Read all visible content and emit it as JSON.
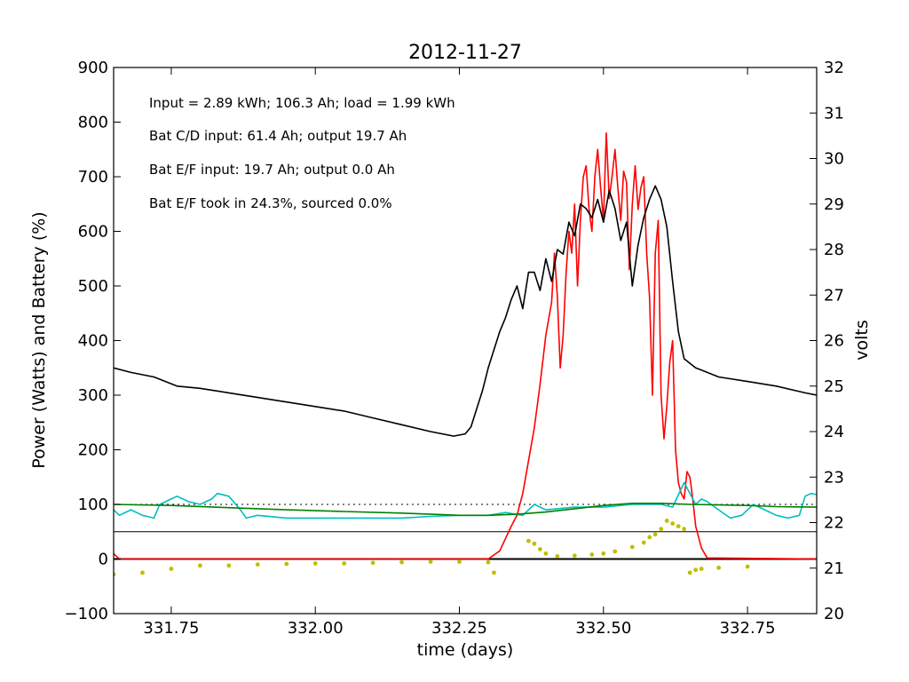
{
  "chart_data": {
    "type": "line",
    "title": "2012-11-27",
    "xlabel": "time (days)",
    "ylabel": "Power (Watts) and Battery (%)",
    "y2label": "volts",
    "xlim": [
      331.65,
      332.87
    ],
    "ylim": [
      -100,
      900
    ],
    "y2lim": [
      20,
      32
    ],
    "xticks": [
      "331.75",
      "332.00",
      "332.25",
      "332.50",
      "332.75"
    ],
    "xtick_values": [
      331.75,
      332.0,
      332.25,
      332.5,
      332.75
    ],
    "yticks": [
      "−100",
      "0",
      "100",
      "200",
      "300",
      "400",
      "500",
      "600",
      "700",
      "800",
      "900"
    ],
    "ytick_values": [
      -100,
      0,
      100,
      200,
      300,
      400,
      500,
      600,
      700,
      800,
      900
    ],
    "y2ticks": [
      "20",
      "21",
      "22",
      "23",
      "24",
      "25",
      "26",
      "27",
      "28",
      "29",
      "30",
      "31",
      "32"
    ],
    "y2tick_values": [
      20,
      21,
      22,
      23,
      24,
      25,
      26,
      27,
      28,
      29,
      30,
      31,
      32
    ],
    "grid": false,
    "annotations": [
      "Input = 2.89 kWh; 106.3 Ah; load = 1.99 kWh",
      "Bat C/D input: 61.4 Ah; output 19.7 Ah",
      "Bat E/F input: 19.7 Ah; output 0.0 Ah",
      "Bat E/F took in 24.3%, sourced 0.0%"
    ],
    "hlines": [
      {
        "y": 100,
        "style": "dotted",
        "color": "#000000"
      },
      {
        "y": 50,
        "style": "solid",
        "color": "#000000"
      },
      {
        "y": 0,
        "style": "solid",
        "color": "#000000"
      }
    ],
    "series": [
      {
        "color": "#ff0000",
        "axis": "left",
        "style": "line",
        "x": [
          331.65,
          331.66,
          332.0,
          332.2,
          332.3,
          332.32,
          332.34,
          332.35,
          332.36,
          332.37,
          332.38,
          332.39,
          332.4,
          332.41,
          332.415,
          332.42,
          332.425,
          332.43,
          332.435,
          332.44,
          332.445,
          332.45,
          332.455,
          332.46,
          332.465,
          332.47,
          332.475,
          332.48,
          332.485,
          332.49,
          332.495,
          332.5,
          332.505,
          332.51,
          332.515,
          332.52,
          332.525,
          332.53,
          332.535,
          332.54,
          332.545,
          332.55,
          332.555,
          332.56,
          332.565,
          332.57,
          332.575,
          332.58,
          332.585,
          332.59,
          332.595,
          332.6,
          332.605,
          332.61,
          332.615,
          332.62,
          332.625,
          332.63,
          332.635,
          332.64,
          332.645,
          332.65,
          332.655,
          332.66,
          332.67,
          332.68,
          332.87
        ],
        "y": [
          10,
          0,
          0,
          0,
          0,
          15,
          60,
          80,
          120,
          180,
          240,
          320,
          410,
          470,
          560,
          480,
          350,
          410,
          520,
          600,
          560,
          650,
          500,
          620,
          700,
          720,
          640,
          600,
          700,
          750,
          680,
          620,
          780,
          660,
          700,
          750,
          680,
          620,
          710,
          690,
          530,
          650,
          720,
          640,
          680,
          700,
          560,
          480,
          300,
          560,
          620,
          300,
          220,
          280,
          360,
          400,
          200,
          140,
          120,
          110,
          160,
          150,
          110,
          60,
          20,
          2,
          0
        ]
      },
      {
        "color": "#000000",
        "axis": "right",
        "style": "line",
        "x": [
          331.65,
          331.68,
          331.72,
          331.76,
          331.8,
          331.85,
          331.9,
          331.95,
          332.0,
          332.05,
          332.1,
          332.15,
          332.2,
          332.24,
          332.26,
          332.27,
          332.28,
          332.29,
          332.3,
          332.31,
          332.32,
          332.33,
          332.34,
          332.35,
          332.36,
          332.37,
          332.38,
          332.39,
          332.4,
          332.41,
          332.42,
          332.43,
          332.44,
          332.45,
          332.46,
          332.47,
          332.48,
          332.49,
          332.5,
          332.51,
          332.52,
          332.53,
          332.54,
          332.55,
          332.56,
          332.57,
          332.58,
          332.59,
          332.6,
          332.61,
          332.62,
          332.63,
          332.64,
          332.65,
          332.66,
          332.67,
          332.7,
          332.75,
          332.8,
          332.85,
          332.87
        ],
        "y": [
          25.4,
          25.3,
          25.2,
          25.0,
          24.95,
          24.85,
          24.75,
          24.65,
          24.55,
          24.45,
          24.3,
          24.15,
          24.0,
          23.9,
          23.95,
          24.1,
          24.5,
          24.9,
          25.4,
          25.8,
          26.2,
          26.5,
          26.9,
          27.2,
          26.7,
          27.5,
          27.5,
          27.1,
          27.8,
          27.3,
          28.0,
          27.9,
          28.6,
          28.3,
          29.0,
          28.9,
          28.7,
          29.1,
          28.6,
          29.3,
          28.9,
          28.2,
          28.6,
          27.2,
          28.1,
          28.7,
          29.1,
          29.4,
          29.1,
          28.5,
          27.3,
          26.2,
          25.6,
          25.5,
          25.4,
          25.35,
          25.2,
          25.1,
          25.0,
          24.85,
          24.8
        ]
      },
      {
        "color": "#00bfbf",
        "axis": "left",
        "style": "line",
        "x": [
          331.65,
          331.66,
          331.68,
          331.7,
          331.72,
          331.73,
          331.75,
          331.76,
          331.78,
          331.8,
          331.82,
          331.83,
          331.85,
          331.87,
          331.88,
          331.9,
          331.95,
          332.0,
          332.05,
          332.1,
          332.15,
          332.2,
          332.25,
          332.3,
          332.33,
          332.36,
          332.38,
          332.4,
          332.45,
          332.5,
          332.55,
          332.6,
          332.62,
          332.64,
          332.66,
          332.67,
          332.68,
          332.7,
          332.72,
          332.74,
          332.76,
          332.78,
          332.8,
          332.82,
          332.84,
          332.85,
          332.86,
          332.87
        ],
        "y": [
          90,
          80,
          90,
          80,
          75,
          100,
          110,
          115,
          105,
          100,
          110,
          120,
          115,
          90,
          75,
          80,
          75,
          75,
          75,
          75,
          75,
          78,
          80,
          80,
          85,
          80,
          100,
          90,
          95,
          95,
          100,
          100,
          95,
          140,
          100,
          110,
          105,
          90,
          75,
          80,
          100,
          90,
          80,
          75,
          80,
          115,
          120,
          118
        ]
      },
      {
        "color": "#008000",
        "axis": "left",
        "style": "line",
        "x": [
          331.65,
          331.75,
          331.85,
          331.95,
          332.05,
          332.15,
          332.25,
          332.3,
          332.35,
          332.4,
          332.45,
          332.5,
          332.55,
          332.6,
          332.65,
          332.7,
          332.75,
          332.8,
          332.87
        ],
        "y": [
          100,
          98,
          94,
          90,
          87,
          84,
          80,
          80,
          82,
          86,
          92,
          98,
          102,
          102,
          100,
          99,
          98,
          96,
          95
        ]
      },
      {
        "color": "#bfbf00",
        "axis": "left",
        "style": "dots",
        "x": [
          331.65,
          331.7,
          331.75,
          331.8,
          331.85,
          331.9,
          331.95,
          332.0,
          332.05,
          332.1,
          332.15,
          332.2,
          332.25,
          332.3,
          332.31,
          332.37,
          332.38,
          332.39,
          332.4,
          332.42,
          332.45,
          332.48,
          332.5,
          332.52,
          332.55,
          332.57,
          332.58,
          332.59,
          332.6,
          332.61,
          332.62,
          332.63,
          332.64,
          332.65,
          332.66,
          332.67,
          332.7,
          332.75
        ],
        "y": [
          -28,
          -25,
          -18,
          -12,
          -12,
          -10,
          -9,
          -8,
          -8,
          -7,
          -6,
          -5,
          -5,
          -6,
          -25,
          33,
          28,
          18,
          10,
          5,
          6,
          8,
          10,
          14,
          22,
          30,
          40,
          45,
          55,
          70,
          65,
          60,
          55,
          -25,
          -20,
          -18,
          -16,
          -14
        ]
      }
    ]
  }
}
